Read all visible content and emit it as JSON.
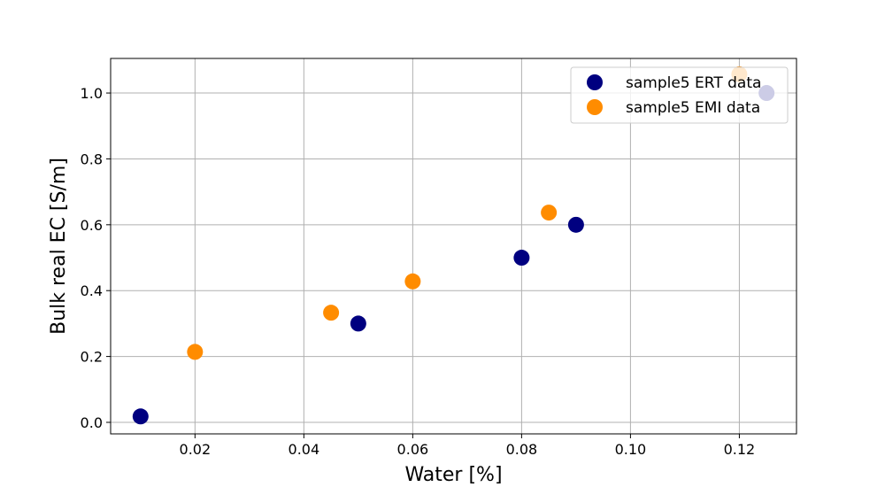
{
  "chart_data": {
    "type": "scatter",
    "title": "",
    "xlabel": "Water [%]",
    "ylabel": "Bulk real EC [S/m]",
    "xlim": [
      0.0045,
      0.1305
    ],
    "ylim": [
      -0.035,
      1.105
    ],
    "xticks": [
      0.02,
      0.04,
      0.06,
      0.08,
      0.1,
      0.12
    ],
    "xtick_labels": [
      "0.02",
      "0.04",
      "0.06",
      "0.08",
      "0.10",
      "0.12"
    ],
    "yticks": [
      0.0,
      0.2,
      0.4,
      0.6,
      0.8,
      1.0
    ],
    "ytick_labels": [
      "0.0",
      "0.2",
      "0.4",
      "0.6",
      "0.8",
      "1.0"
    ],
    "grid": true,
    "legend_position": "top-right",
    "series": [
      {
        "name": "sample5 ERT data",
        "color": "#000080",
        "x": [
          0.01,
          0.05,
          0.08,
          0.09,
          0.125
        ],
        "y": [
          0.018,
          0.3,
          0.5,
          0.6,
          1.0
        ]
      },
      {
        "name": "sample5 EMI data",
        "color": "#ff8c00",
        "x": [
          0.02,
          0.045,
          0.06,
          0.085,
          0.12
        ],
        "y": [
          0.214,
          0.333,
          0.428,
          0.637,
          1.057
        ]
      }
    ]
  }
}
